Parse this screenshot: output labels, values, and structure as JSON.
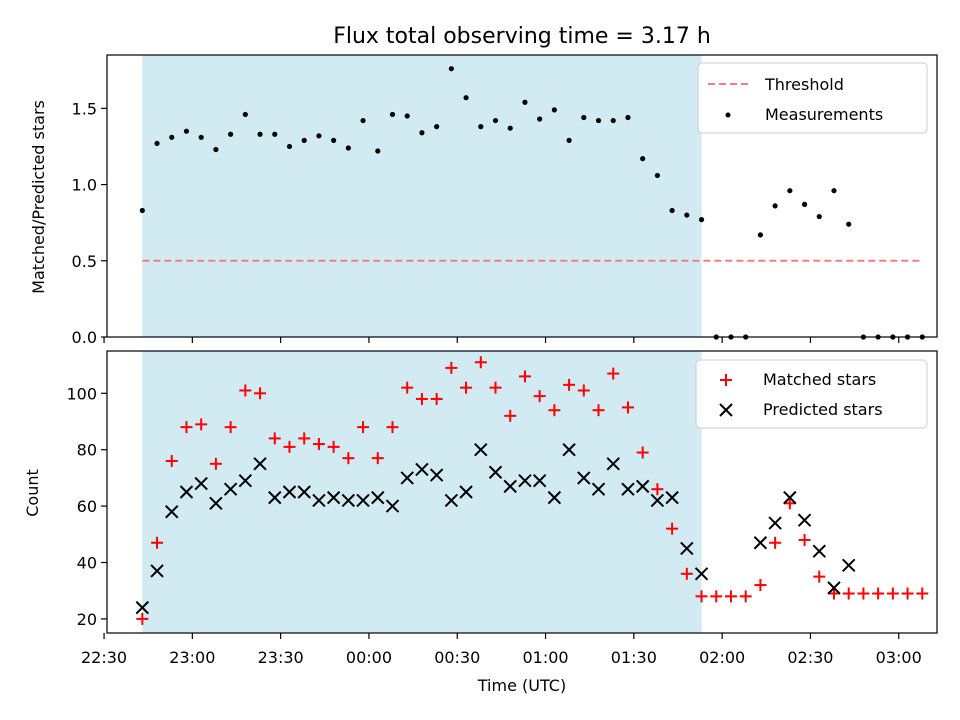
{
  "chart_data": [
    {
      "type": "scatter",
      "title": "Flux total observing time = 3.17 h",
      "ylabel": "Matched/Predicted stars",
      "ylim": [
        0,
        1.85
      ],
      "yticks": [
        "0.0",
        "0.5",
        "1.0",
        "1.5"
      ],
      "ytick_values": [
        0,
        0.5,
        1.0,
        1.5
      ],
      "shaded_span": [
        "22:43",
        "01:53"
      ],
      "shade_color": "#add8e6",
      "legend_position": "upper right",
      "threshold": {
        "name": "Threshold",
        "value": 0.5,
        "x_range": [
          "22:43",
          "03:08"
        ],
        "color": "#f08080",
        "style": "dashed"
      },
      "series": [
        {
          "name": "Measurements",
          "marker": "dot",
          "color": "#000000",
          "x": [
            "22:43",
            "22:48",
            "22:53",
            "22:58",
            "23:03",
            "23:08",
            "23:13",
            "23:18",
            "23:23",
            "23:28",
            "23:33",
            "23:38",
            "23:43",
            "23:48",
            "23:53",
            "23:58",
            "00:03",
            "00:08",
            "00:13",
            "00:18",
            "00:23",
            "00:28",
            "00:33",
            "00:38",
            "00:43",
            "00:48",
            "00:53",
            "00:58",
            "01:03",
            "01:08",
            "01:13",
            "01:18",
            "01:23",
            "01:28",
            "01:33",
            "01:38",
            "01:43",
            "01:48",
            "01:53",
            "01:58",
            "02:03",
            "02:08",
            "02:13",
            "02:18",
            "02:23",
            "02:28",
            "02:33",
            "02:38",
            "02:43",
            "02:48",
            "02:53",
            "02:58",
            "03:03",
            "03:08"
          ],
          "y": [
            0.83,
            1.27,
            1.31,
            1.35,
            1.31,
            1.23,
            1.33,
            1.46,
            1.33,
            1.33,
            1.25,
            1.29,
            1.32,
            1.29,
            1.24,
            1.42,
            1.22,
            1.46,
            1.45,
            1.34,
            1.38,
            1.76,
            1.57,
            1.38,
            1.42,
            1.37,
            1.54,
            1.43,
            1.49,
            1.29,
            1.44,
            1.42,
            1.42,
            1.44,
            1.17,
            1.06,
            0.83,
            0.8,
            0.77,
            0,
            0,
            0,
            0.67,
            0.86,
            0.96,
            0.87,
            0.79,
            0.96,
            0.74,
            0,
            0,
            0,
            0,
            0
          ]
        }
      ]
    },
    {
      "type": "scatter",
      "xlabel": "Time (UTC)",
      "ylabel": "Count",
      "ylim": [
        15,
        115
      ],
      "yticks": [
        "20",
        "40",
        "60",
        "80",
        "100"
      ],
      "ytick_values": [
        20,
        40,
        60,
        80,
        100
      ],
      "xticks": [
        "22:30",
        "23:00",
        "23:30",
        "00:00",
        "00:30",
        "01:00",
        "01:30",
        "02:00",
        "02:30",
        "03:00"
      ],
      "xlim": [
        "22:31",
        "03:13"
      ],
      "shaded_span": [
        "22:43",
        "01:53"
      ],
      "shade_color": "#add8e6",
      "legend_position": "upper right",
      "series": [
        {
          "name": "Matched stars",
          "marker": "plus",
          "color": "#ff0000",
          "x": [
            "22:43",
            "22:48",
            "22:53",
            "22:58",
            "23:03",
            "23:08",
            "23:13",
            "23:18",
            "23:23",
            "23:28",
            "23:33",
            "23:38",
            "23:43",
            "23:48",
            "23:53",
            "23:58",
            "00:03",
            "00:08",
            "00:13",
            "00:18",
            "00:23",
            "00:28",
            "00:33",
            "00:38",
            "00:43",
            "00:48",
            "00:53",
            "00:58",
            "01:03",
            "01:08",
            "01:13",
            "01:18",
            "01:23",
            "01:28",
            "01:33",
            "01:38",
            "01:43",
            "01:48",
            "01:53",
            "01:58",
            "02:03",
            "02:08",
            "02:13",
            "02:18",
            "02:23",
            "02:28",
            "02:33",
            "02:38",
            "02:43",
            "02:48",
            "02:53",
            "02:58",
            "03:03",
            "03:08"
          ],
          "y": [
            20,
            47,
            76,
            88,
            89,
            75,
            88,
            101,
            100,
            84,
            81,
            84,
            82,
            81,
            77,
            88,
            77,
            88,
            102,
            98,
            98,
            109,
            102,
            111,
            102,
            92,
            106,
            99,
            94,
            103,
            101,
            94,
            107,
            95,
            79,
            66,
            52,
            36,
            28,
            28,
            28,
            28,
            32,
            47,
            61,
            48,
            35,
            29,
            29,
            29,
            29,
            29,
            29,
            29
          ]
        },
        {
          "name": "Predicted stars",
          "marker": "x",
          "color": "#000000",
          "x": [
            "22:43",
            "22:48",
            "22:53",
            "22:58",
            "23:03",
            "23:08",
            "23:13",
            "23:18",
            "23:23",
            "23:28",
            "23:33",
            "23:38",
            "23:43",
            "23:48",
            "23:53",
            "23:58",
            "00:03",
            "00:08",
            "00:13",
            "00:18",
            "00:23",
            "00:28",
            "00:33",
            "00:38",
            "00:43",
            "00:48",
            "00:53",
            "00:58",
            "01:03",
            "01:08",
            "01:13",
            "01:18",
            "01:23",
            "01:28",
            "01:33",
            "01:38",
            "01:43",
            "01:48",
            "01:53",
            "02:13",
            "02:18",
            "02:23",
            "02:28",
            "02:33",
            "02:38",
            "02:43"
          ],
          "y": [
            24,
            37,
            58,
            65,
            68,
            61,
            66,
            69,
            75,
            63,
            65,
            65,
            62,
            63,
            62,
            62,
            63,
            60,
            70,
            73,
            71,
            62,
            65,
            80,
            72,
            67,
            69,
            69,
            63,
            80,
            70,
            66,
            75,
            66,
            67,
            62,
            63,
            45,
            36,
            47,
            54,
            63,
            55,
            44,
            31,
            39
          ]
        }
      ]
    }
  ]
}
